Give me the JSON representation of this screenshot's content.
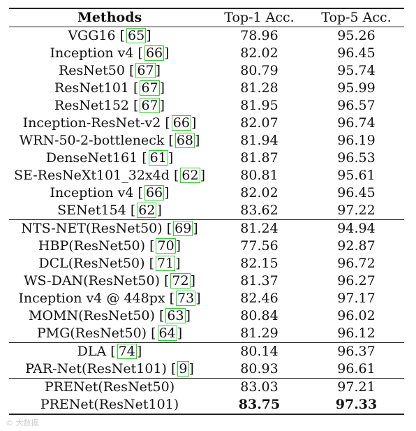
{
  "table": {
    "headers": {
      "method": "Methods",
      "top1": "Top-1 Acc.",
      "top5": "Top-5 Acc."
    },
    "groups": [
      {
        "rows": [
          {
            "method": "VGG16",
            "cite": "65",
            "top1": "78.96",
            "top5": "95.26"
          },
          {
            "method": "Inception v4",
            "cite": "66",
            "top1": "82.02",
            "top5": "96.45"
          },
          {
            "method": "ResNet50",
            "cite": "67",
            "top1": "80.79",
            "top5": "95.74"
          },
          {
            "method": "ResNet101",
            "cite": "67",
            "top1": "81.28",
            "top5": "95.99"
          },
          {
            "method": "ResNet152",
            "cite": "67",
            "top1": "81.95",
            "top5": "96.57"
          },
          {
            "method": "Inception-ResNet-v2",
            "cite": "66",
            "top1": "82.07",
            "top5": "96.74"
          },
          {
            "method": "WRN-50-2-bottleneck",
            "cite": "68",
            "top1": "81.94",
            "top5": "96.19"
          },
          {
            "method": "DenseNet161",
            "cite": "61",
            "top1": "81.87",
            "top5": "96.53"
          },
          {
            "method": "SE-ResNeXt101_32x4d",
            "cite": "62",
            "top1": "80.81",
            "top5": "95.61"
          },
          {
            "method": "Inception v4",
            "cite": "66",
            "top1": "82.02",
            "top5": "96.45"
          },
          {
            "method": "SENet154",
            "cite": "62",
            "top1": "83.62",
            "top5": "97.22"
          }
        ]
      },
      {
        "rows": [
          {
            "method": "NTS-NET(ResNet50)",
            "cite": "69",
            "top1": "81.24",
            "top5": "94.94"
          },
          {
            "method": "HBP(ResNet50)",
            "cite": "70",
            "top1": "77.56",
            "top5": "92.87"
          },
          {
            "method": "DCL(ResNet50)",
            "cite": "71",
            "top1": "82.15",
            "top5": "96.72"
          },
          {
            "method": "WS-DAN(ResNet50)",
            "cite": "72",
            "top1": "81.37",
            "top5": "96.27"
          },
          {
            "method": "Inception v4 @ 448px",
            "cite": "73",
            "top1": "82.46",
            "top5": "97.17"
          },
          {
            "method": "MOMN(ResNet50)",
            "cite": "63",
            "top1": "80.84",
            "top5": "96.02"
          },
          {
            "method": "PMG(ResNet50)",
            "cite": "64",
            "top1": "81.29",
            "top5": "96.12"
          }
        ]
      },
      {
        "rows": [
          {
            "method": "DLA",
            "cite": "74",
            "top1": "80.14",
            "top5": "96.37"
          },
          {
            "method": "PAR-Net(ResNet101)",
            "cite": "9",
            "top1": "80.93",
            "top5": "96.61"
          }
        ]
      },
      {
        "rows": [
          {
            "method": "PRENet(ResNet50)",
            "cite": "",
            "top1": "83.03",
            "top5": "97.21"
          },
          {
            "method": "PRENet(ResNet101)",
            "cite": "",
            "top1": "83.75",
            "top5": "97.33",
            "best": true
          }
        ]
      }
    ]
  },
  "citation_box_color": "#33cc33",
  "watermark": "© 大数据"
}
